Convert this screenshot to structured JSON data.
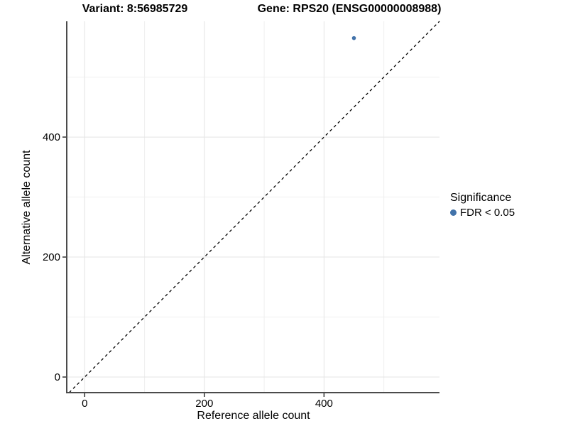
{
  "titles": {
    "variant": "Variant: 8:56985729",
    "gene": "Gene: RPS20 (ENSG00000008988)"
  },
  "axes": {
    "x_label": "Reference allele count",
    "y_label": "Alternative allele count"
  },
  "legend": {
    "title": "Significance",
    "items": [
      {
        "label": "FDR < 0.05",
        "color": "#4273aa",
        "marker": "circle-icon"
      }
    ]
  },
  "colors": {
    "point": "#4273aa",
    "axis_line": "#4b4b4b",
    "tick_mark": "#333333",
    "grid_major": "#e4e4e4",
    "grid_minor": "#efefef",
    "identity_line": "#000000",
    "text": "#000000",
    "background": "#ffffff"
  },
  "chart_data": {
    "type": "scatter",
    "title": "Variant: 8:56985729  |  Gene: RPS20 (ENSG00000008988)",
    "xlabel": "Reference allele count",
    "ylabel": "Alternative allele count",
    "xlim": [
      -30,
      593
    ],
    "ylim": [
      -26,
      593
    ],
    "x_ticks": [
      0,
      200,
      400
    ],
    "y_ticks": [
      0,
      200,
      400
    ],
    "x_minor_gridlines": [
      100,
      300,
      500
    ],
    "y_minor_gridlines": [
      100,
      300,
      500
    ],
    "grid": true,
    "legend_position": "right",
    "series": [
      {
        "name": "FDR < 0.05",
        "color": "#4273aa",
        "points": [
          {
            "x": 450,
            "y": 565
          }
        ]
      }
    ],
    "reference_line": {
      "type": "identity",
      "style": "dashed"
    }
  }
}
